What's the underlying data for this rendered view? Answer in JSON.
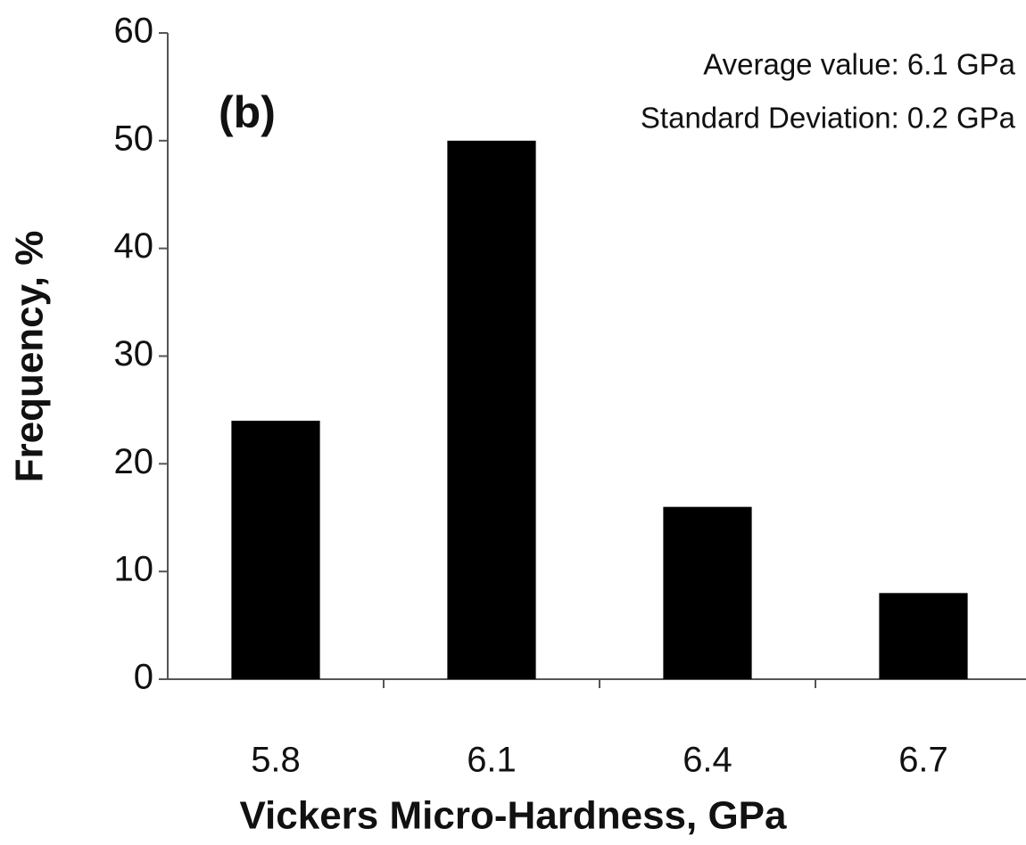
{
  "chart_data": {
    "type": "bar",
    "categories": [
      "5.8",
      "6.1",
      "6.4",
      "6.7"
    ],
    "values": [
      24,
      50,
      16,
      8
    ],
    "color": "#000000",
    "ylim": [
      0,
      60
    ],
    "yticks": [
      0,
      10,
      20,
      30,
      40,
      50,
      60
    ],
    "xlabel": "Vickers Micro-Hardness, GPa",
    "ylabel": "Frequency, %",
    "annotations": [
      "(b)",
      "Average value: 6.1 GPa",
      "Standard Deviation: 0.2 GPa"
    ],
    "grid": false
  }
}
